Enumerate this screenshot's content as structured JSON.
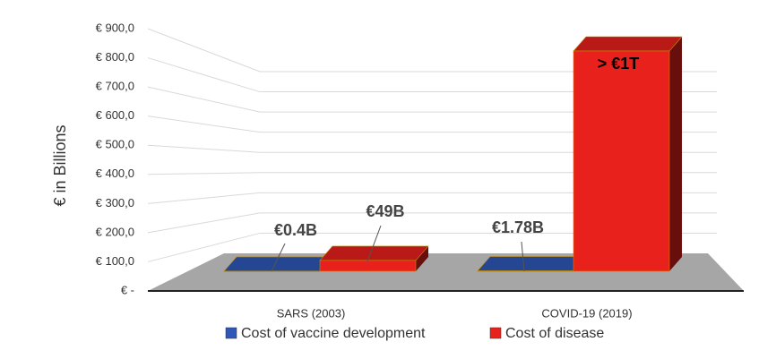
{
  "chart_data": {
    "type": "bar3d",
    "y_label": "€ in Billions",
    "categories": [
      "SARS (2003)",
      "COVID-19 (2019)"
    ],
    "series": [
      {
        "name": "Cost of vaccine development",
        "color": "#2e57b8",
        "values": [
          0.4,
          1.78
        ],
        "value_labels": [
          "€0.4B",
          "€1.78B"
        ]
      },
      {
        "name": "Cost of disease",
        "color": "#e8211d",
        "values": [
          49,
          1000
        ],
        "value_labels": [
          "€49B",
          "> €1T"
        ]
      }
    ],
    "ylim": [
      0,
      900
    ],
    "yticks": [
      {
        "value": 0,
        "label": "€ -"
      },
      {
        "value": 100,
        "label": "€ 100,0"
      },
      {
        "value": 200,
        "label": "€ 200,0"
      },
      {
        "value": 300,
        "label": "€ 300,0"
      },
      {
        "value": 400,
        "label": "€ 400,0"
      },
      {
        "value": 500,
        "label": "€ 500,0"
      },
      {
        "value": 600,
        "label": "€ 600,0"
      },
      {
        "value": 700,
        "label": "€ 700,0"
      },
      {
        "value": 800,
        "label": "€ 800,0"
      },
      {
        "value": 900,
        "label": "€ 900,0"
      }
    ],
    "grid": true
  }
}
